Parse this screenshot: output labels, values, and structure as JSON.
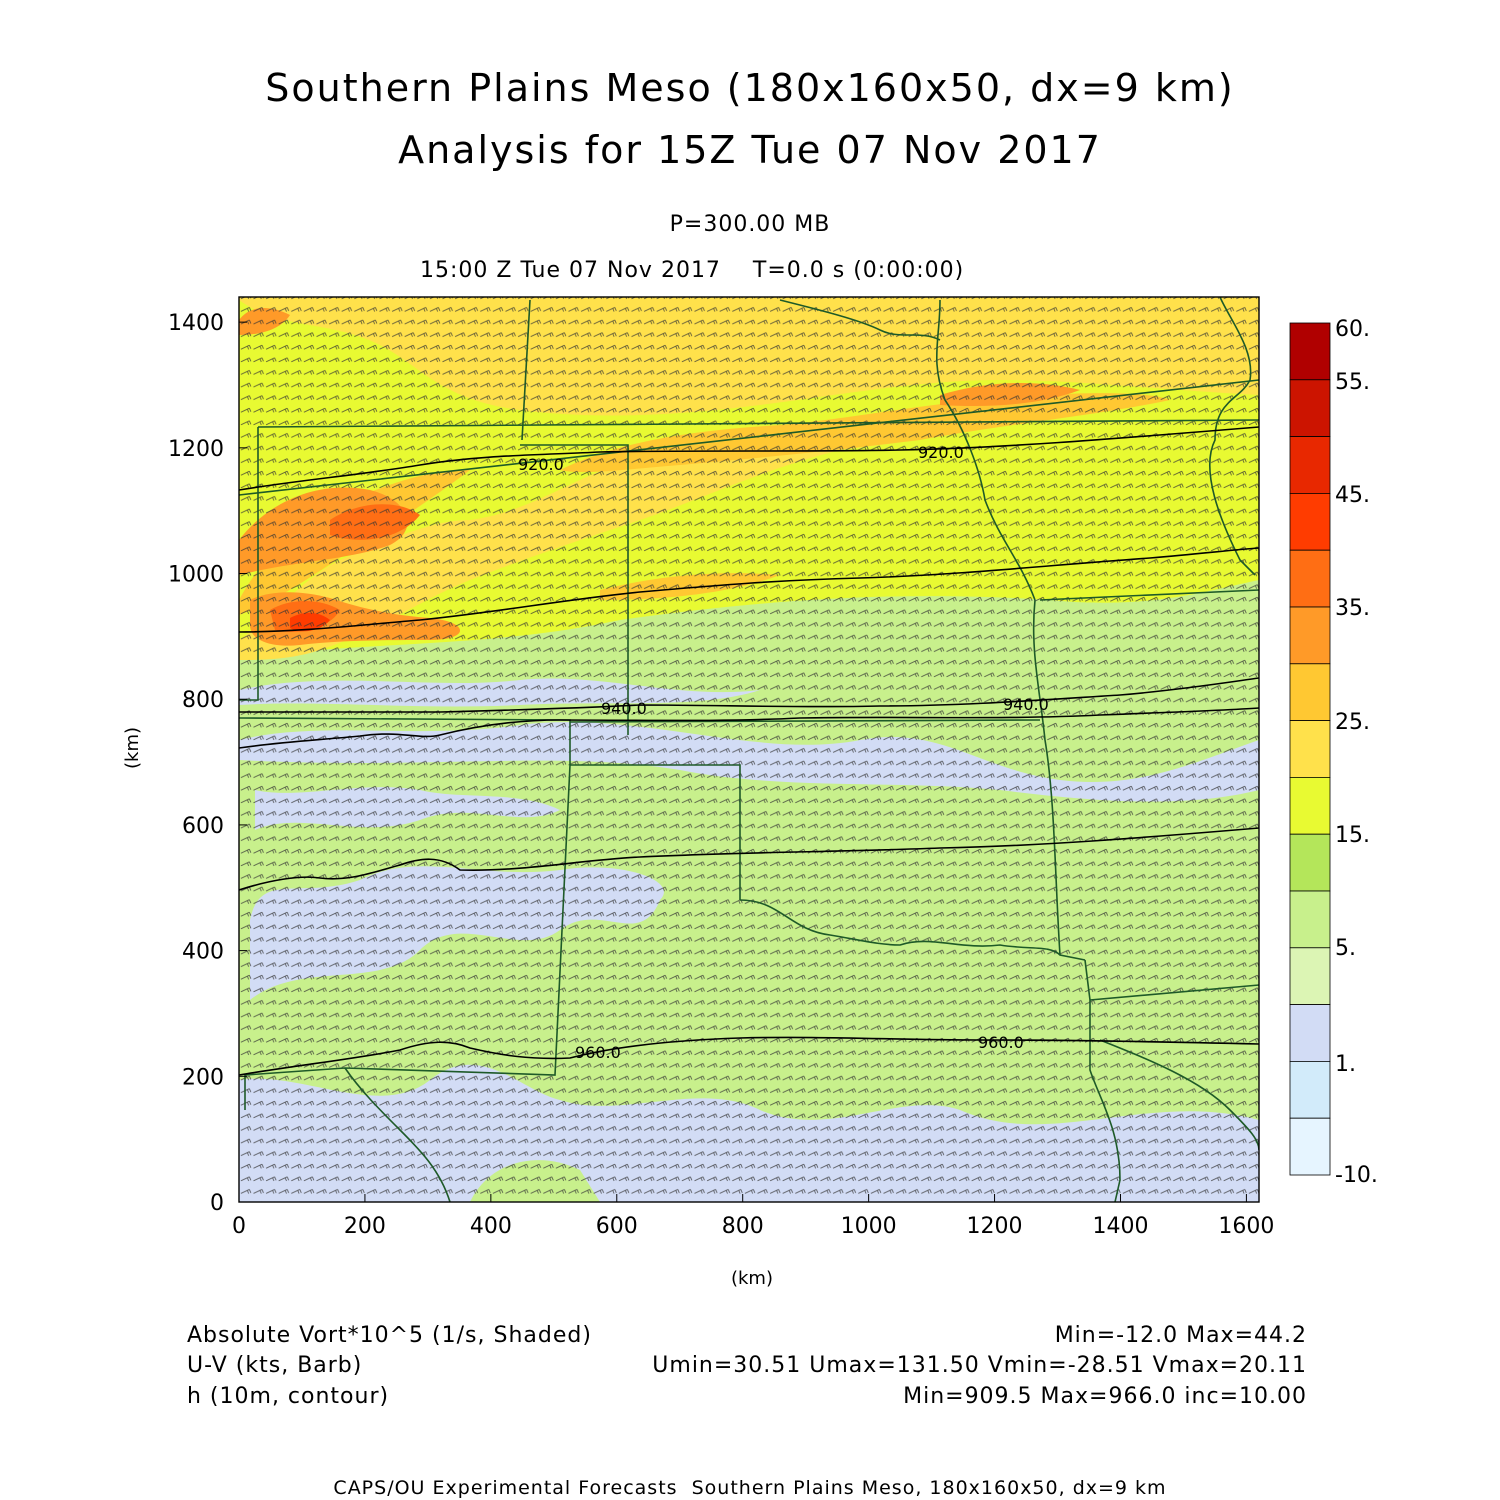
{
  "title": {
    "line1": "Southern Plains Meso (180x160x50, dx=9 km)",
    "line2": "Analysis for 15Z Tue 07 Nov 2017"
  },
  "subtitle": {
    "level": "P=300.00 MB",
    "time": "15:00 Z Tue 07 Nov 2017    T=0.0 s (0:00:00)"
  },
  "axes": {
    "x_label": "(km)",
    "y_label": "(km)",
    "x_ticks": [
      "0",
      "200",
      "400",
      "600",
      "800",
      "1000",
      "1200",
      "1400",
      "1600"
    ],
    "y_ticks": [
      "0",
      "200",
      "400",
      "600",
      "800",
      "1000",
      "1200",
      "1400"
    ],
    "x_range_km": [
      0,
      1620
    ],
    "y_range_km": [
      0,
      1440
    ]
  },
  "colorbar": {
    "labels": [
      "60.",
      "55.",
      "45.",
      "35.",
      "25.",
      "15.",
      "5.",
      "1.",
      "-10."
    ],
    "colors_top_to_bottom": [
      "#b00000",
      "#cc1400",
      "#e82800",
      "#ff3c00",
      "#ff6e14",
      "#ff9a28",
      "#ffc832",
      "#ffe14b",
      "#e8fa32",
      "#b4e65a",
      "#c8f08c",
      "#dcf5b4",
      "#d2dcf5",
      "#d2ebfa",
      "#e6f5ff"
    ]
  },
  "contours": {
    "labels": [
      "920.0",
      "920.0",
      "940.0",
      "940.0",
      "960.0",
      "960.0"
    ]
  },
  "legend": {
    "vort_name": "Absolute Vort*10^5 (1/s, Shaded)",
    "vort_stats": "Min=-12.0 Max=44.2",
    "wind_name": "U-V (kts, Barb)",
    "wind_stats": "Umin=30.51 Umax=131.50 Vmin=-28.51 Vmax=20.11",
    "height_name": "h (10m, contour)",
    "height_stats": "Min=909.5 Max=966.0 inc=10.00"
  },
  "credit": "CAPS/OU Experimental Forecasts  Southern Plains Meso, 180x160x50, dx=9 km"
}
